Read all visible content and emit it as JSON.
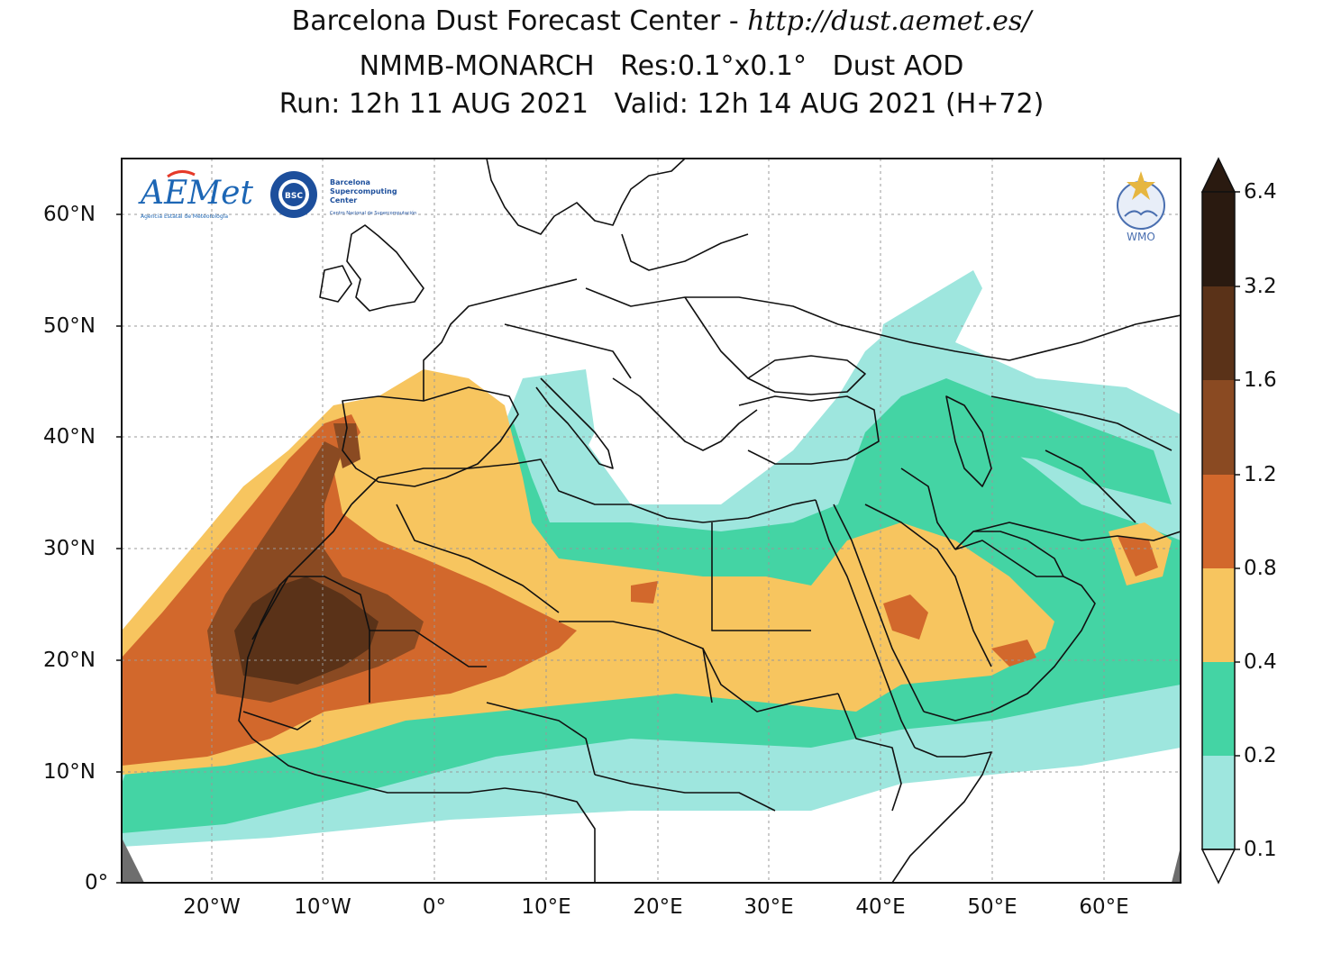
{
  "header": {
    "line1_prefix": "Barcelona Dust Forecast Center - ",
    "line1_url": "http://dust.aemet.es/",
    "line2": "NMMB-MONARCH   Res:0.1°x0.1°   Dust AOD",
    "line3": "Run: 12h 11 AUG 2021   Valid: 12h 14 AUG 2021 (H+72)"
  },
  "logos": {
    "aemet": "AEMet",
    "aemet_sub": "Agencia Estatal de Meteorología",
    "bsc_badge": "BSC",
    "bsc_name_1": "Barcelona",
    "bsc_name_2": "Supercomputing",
    "bsc_name_3": "Center",
    "bsc_sub": "Centro Nacional de Supercomputación",
    "wmo": "WMO"
  },
  "axes": {
    "lat_ticks": [
      "60°N",
      "50°N",
      "40°N",
      "30°N",
      "20°N",
      "10°N",
      "0°"
    ],
    "lon_ticks": [
      "20°W",
      "10°W",
      "0°",
      "10°E",
      "20°E",
      "30°E",
      "40°E",
      "50°E",
      "60°E"
    ]
  },
  "colorbar": {
    "labels": [
      "6.4",
      "3.2",
      "1.6",
      "1.2",
      "0.8",
      "0.4",
      "0.2",
      "0.1"
    ],
    "colors": [
      "#2a1a10",
      "#5a3218",
      "#8a4a22",
      "#d2682c",
      "#f7c55f",
      "#44d4a4",
      "#9ee6de"
    ]
  },
  "map_colors": {
    "c01": "#9ee6de",
    "c02": "#44d4a4",
    "c04": "#f7c55f",
    "c08": "#d2682c",
    "c12": "#8a4a22",
    "c16": "#5a3218",
    "nodata": "#6e6e6e"
  }
}
